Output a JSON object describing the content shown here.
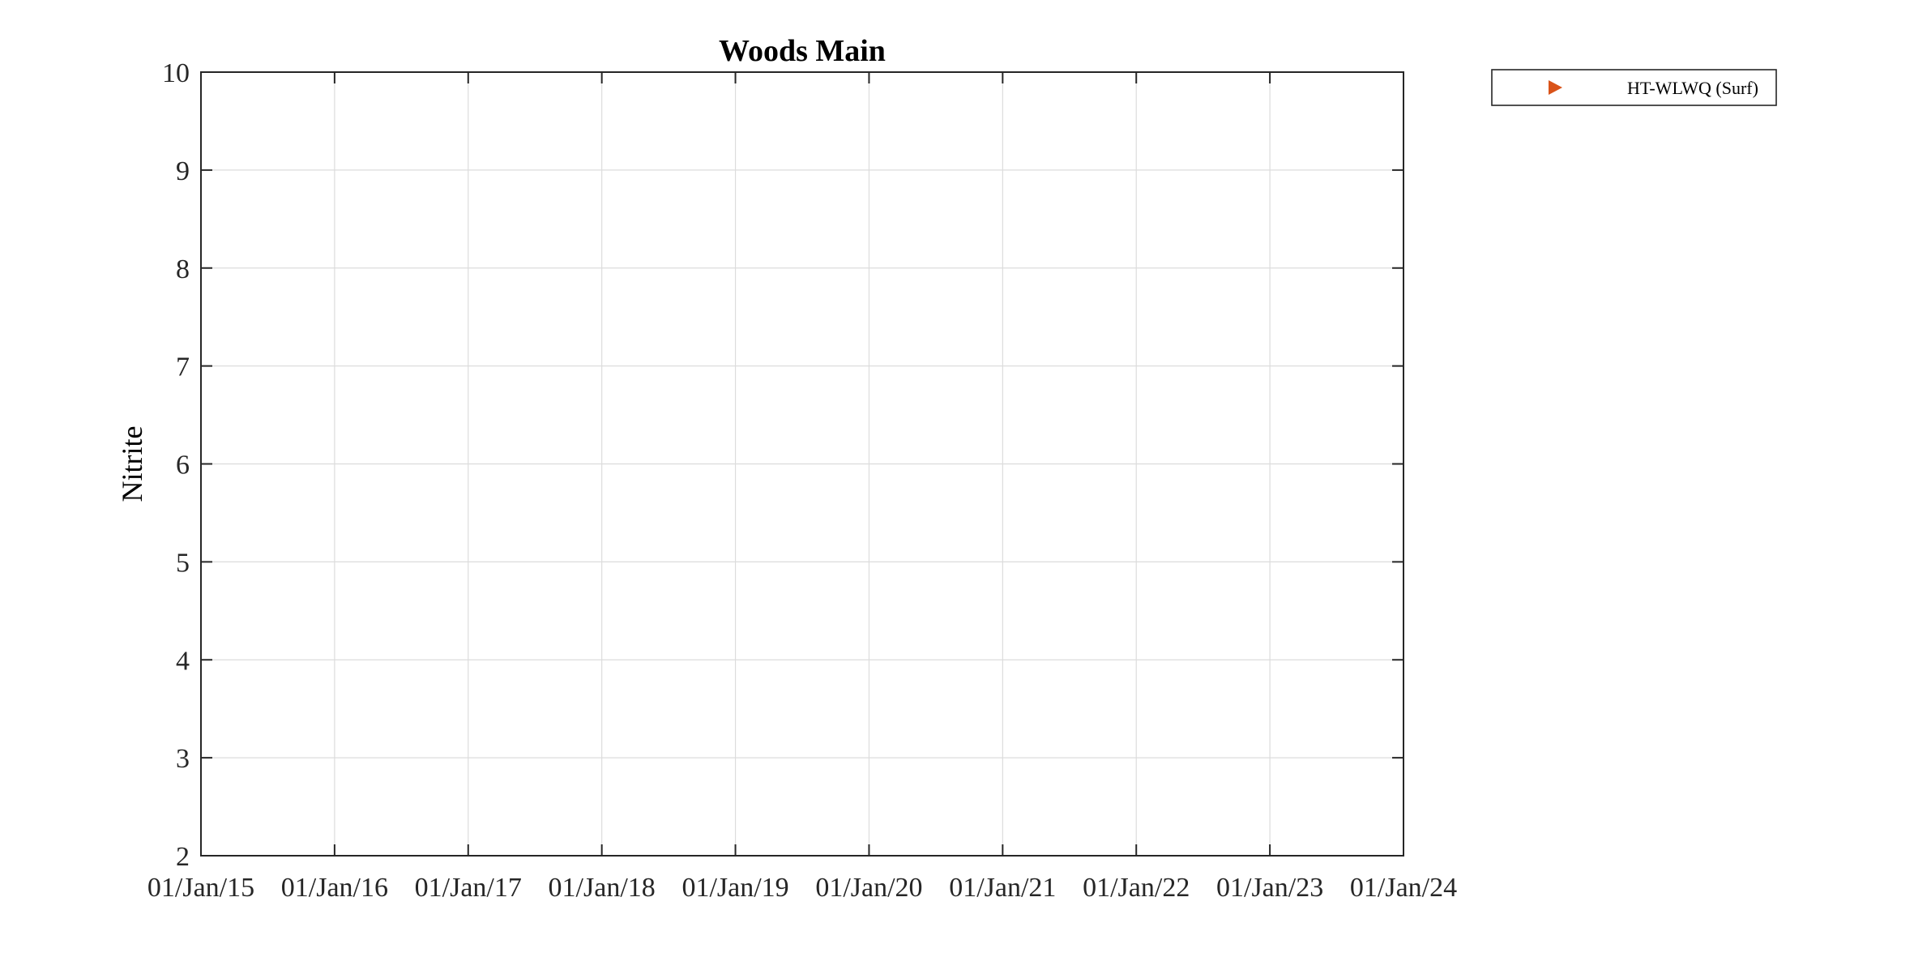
{
  "chart_data": {
    "type": "scatter",
    "title": "Woods Main",
    "xlabel": "",
    "ylabel": "Nitrite",
    "x_tick_labels": [
      "01/Jan/15",
      "01/Jan/16",
      "01/Jan/17",
      "01/Jan/18",
      "01/Jan/19",
      "01/Jan/20",
      "01/Jan/21",
      "01/Jan/22",
      "01/Jan/23",
      "01/Jan/24"
    ],
    "xlim": [
      "2015-01-01",
      "2024-01-01"
    ],
    "y_ticks": [
      2,
      3,
      4,
      5,
      6,
      7,
      8,
      9,
      10
    ],
    "ylim": [
      2,
      10
    ],
    "grid": true,
    "legend_position": "outside-top-right",
    "series": [
      {
        "name": "HT-WLWQ (Surf)",
        "marker": "triangle-right",
        "color": "#D95319",
        "x": [],
        "y": []
      }
    ]
  }
}
